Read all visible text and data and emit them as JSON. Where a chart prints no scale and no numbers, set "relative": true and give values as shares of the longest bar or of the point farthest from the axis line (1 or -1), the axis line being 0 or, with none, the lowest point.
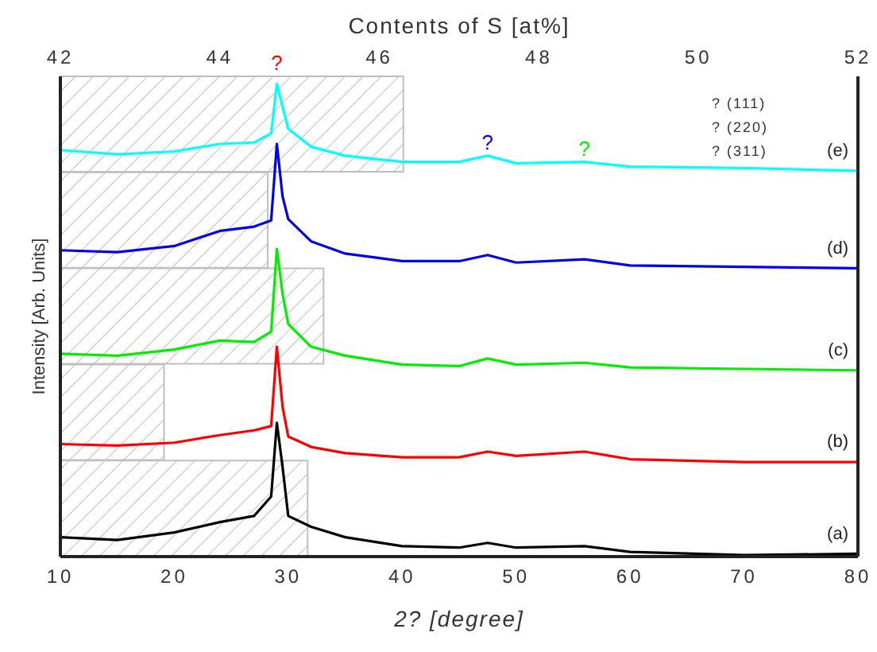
{
  "chart_data": [
    {
      "type": "line",
      "relative": true,
      "xlabel": "2? [degree]",
      "ylabel": "Intensity [Arb. Units]",
      "x": [
        10,
        15,
        20,
        24,
        27,
        28.5,
        29,
        29.5,
        30,
        32,
        35,
        40,
        45,
        47.5,
        50,
        56,
        60,
        70,
        80
      ],
      "xlim": [
        10,
        80
      ],
      "xticks": [
        10,
        20,
        30,
        40,
        50,
        60,
        70,
        80
      ],
      "series": [
        {
          "name": "(a)",
          "color": "#000000",
          "values": [
            0.041,
            0.035,
            0.051,
            0.073,
            0.086,
            0.127,
            0.283,
            0.19,
            0.086,
            0.063,
            0.041,
            0.022,
            0.019,
            0.029,
            0.019,
            0.022,
            0.01,
            0.003,
            0.006
          ]
        },
        {
          "name": "(b)",
          "color": "#ff0000",
          "values": [
            0.238,
            0.235,
            0.241,
            0.257,
            0.267,
            0.276,
            0.444,
            0.317,
            0.254,
            0.232,
            0.219,
            0.21,
            0.21,
            0.222,
            0.213,
            0.222,
            0.206,
            0.2,
            0.2
          ]
        },
        {
          "name": "(c)",
          "color": "#00ee00",
          "values": [
            0.429,
            0.425,
            0.438,
            0.457,
            0.454,
            0.476,
            0.651,
            0.556,
            0.492,
            0.444,
            0.425,
            0.406,
            0.403,
            0.419,
            0.406,
            0.41,
            0.4,
            0.397,
            0.394
          ]
        },
        {
          "name": "(d)",
          "color": "#0000ee",
          "values": [
            0.648,
            0.644,
            0.657,
            0.689,
            0.698,
            0.711,
            0.873,
            0.762,
            0.714,
            0.667,
            0.641,
            0.625,
            0.625,
            0.638,
            0.622,
            0.629,
            0.616,
            0.613,
            0.61
          ]
        },
        {
          "name": "(e)",
          "color": "#00ffff",
          "values": [
            0.86,
            0.851,
            0.857,
            0.873,
            0.876,
            0.895,
            1,
            0.952,
            0.905,
            0.867,
            0.848,
            0.835,
            0.835,
            0.848,
            0.832,
            0.835,
            0.825,
            0.822,
            0.816
          ]
        }
      ],
      "annotations": [
        {
          "text": "?",
          "x": 29,
          "y": 1
        },
        {
          "text": "?",
          "x": 47.5,
          "y": 0.848
        },
        {
          "text": "?",
          "x": 56,
          "y": 0.835
        },
        "? (111)",
        "? (220)",
        "? (311)"
      ]
    },
    {
      "type": "bar",
      "orientation": "horizontal",
      "xlabel": "Contents of S [at%]",
      "categories": [
        null,
        null,
        null,
        null,
        null
      ],
      "values": [
        46.3,
        44.6,
        45.3,
        43.3,
        45.1
      ],
      "color": "#bfbfbf",
      "xlim": [
        42,
        52
      ],
      "xticks": [
        42,
        44,
        46,
        48,
        50,
        52
      ],
      "tick_labels": "x"
    }
  ]
}
